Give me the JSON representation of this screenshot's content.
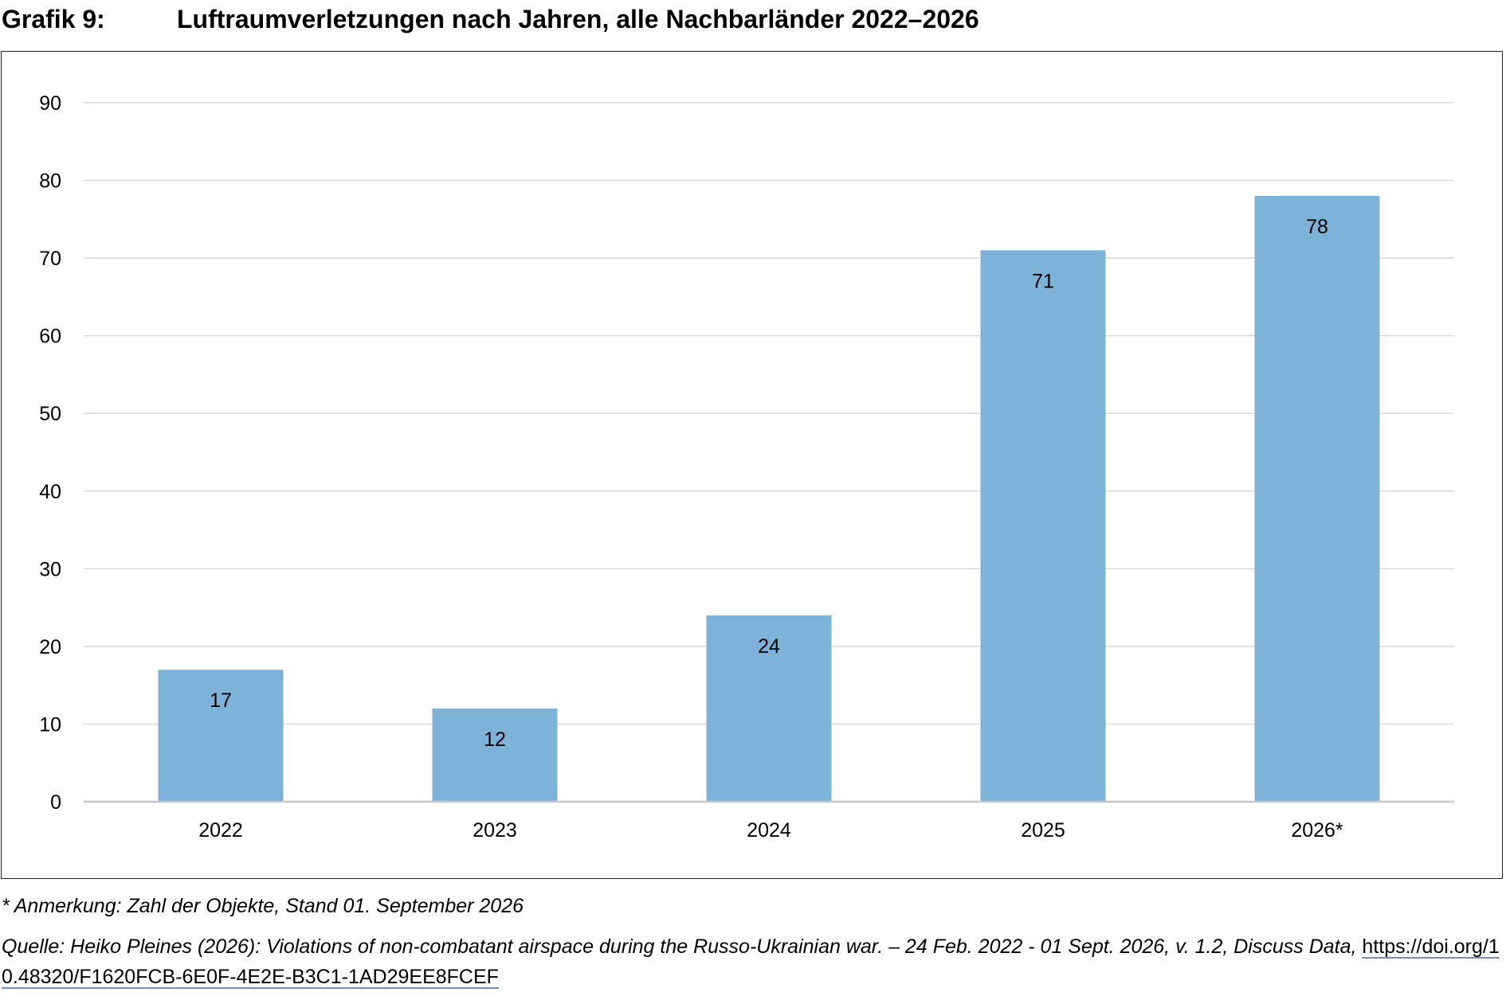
{
  "figure": {
    "label": "Grafik 9:",
    "title": "Luftraumverletzungen nach Jahren, alle Nachbarländer 2022–2026"
  },
  "footnote": "* Anmerkung: Zahl der Objekte, Stand 01. September 2026",
  "source": {
    "text": "Quelle: Heiko Pleines (2026): Violations of non-combatant airspace during the Russo-Ukrainian war. – 24 Feb. 2022 - 01 Sept. 2026, v. 1.2, Discuss Data, ",
    "link": "https://doi.org/10.48320/F1620FCB-6E0F-4E2E-B3C1-1AD29EE8FCEF"
  },
  "colors": {
    "bar": "#7fb2d9",
    "grid": "#d9d9d9",
    "axis": "#c8c8c8"
  },
  "chart_data": {
    "type": "bar",
    "categories": [
      "2022",
      "2023",
      "2024",
      "2025",
      "2026*"
    ],
    "values": [
      17,
      12,
      24,
      71,
      78
    ],
    "data_labels": [
      "17",
      "12",
      "24",
      "71",
      "78"
    ],
    "title": "",
    "xlabel": "",
    "ylabel": "",
    "ylim": [
      0,
      90
    ],
    "yticks": [
      0,
      10,
      20,
      30,
      40,
      50,
      60,
      70,
      80,
      90
    ],
    "grid": true,
    "legend": false
  }
}
